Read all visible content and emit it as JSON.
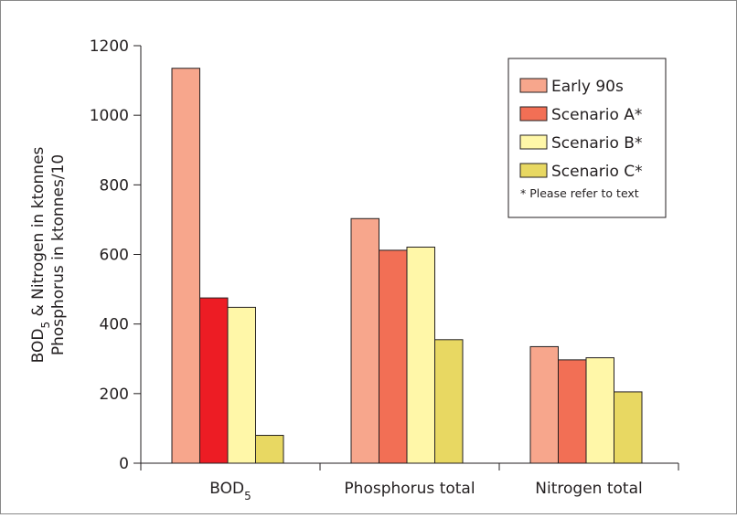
{
  "chart_data": {
    "type": "bar",
    "title": "",
    "xlabel": "",
    "ylabel": {
      "line1_prefix": "BOD",
      "line1_sub": "5",
      "line1_suffix": " & Nitrogen in ktonnes",
      "line2": "Phosphorus in ktonnes/10"
    },
    "ylim": [
      0,
      1200
    ],
    "yticks": [
      0,
      200,
      400,
      600,
      800,
      1000,
      1200
    ],
    "grid": false,
    "legend_position": "top-right",
    "legend_note": "* Please refer to text",
    "categories": [
      {
        "label": "BOD",
        "sub": "5"
      },
      {
        "label": "Phosphorus total",
        "sub": ""
      },
      {
        "label": "Nitrogen total",
        "sub": ""
      }
    ],
    "series": [
      {
        "name": "Early 90s",
        "values": [
          1135,
          703,
          335
        ]
      },
      {
        "name": "Scenario A*",
        "values": [
          475,
          612,
          297
        ]
      },
      {
        "name": "Scenario B*",
        "values": [
          448,
          621,
          303
        ]
      },
      {
        "name": "Scenario C*",
        "values": [
          80,
          355,
          205
        ]
      }
    ],
    "colors": {
      "Early 90s": "#f7a68c",
      "Scenario A*": [
        "#ed1c24",
        "#f26f55",
        "#f26f55"
      ],
      "Scenario B*": "#fff7a8",
      "Scenario C*": "#e8d862",
      "legend_A": "#f26f55"
    }
  }
}
